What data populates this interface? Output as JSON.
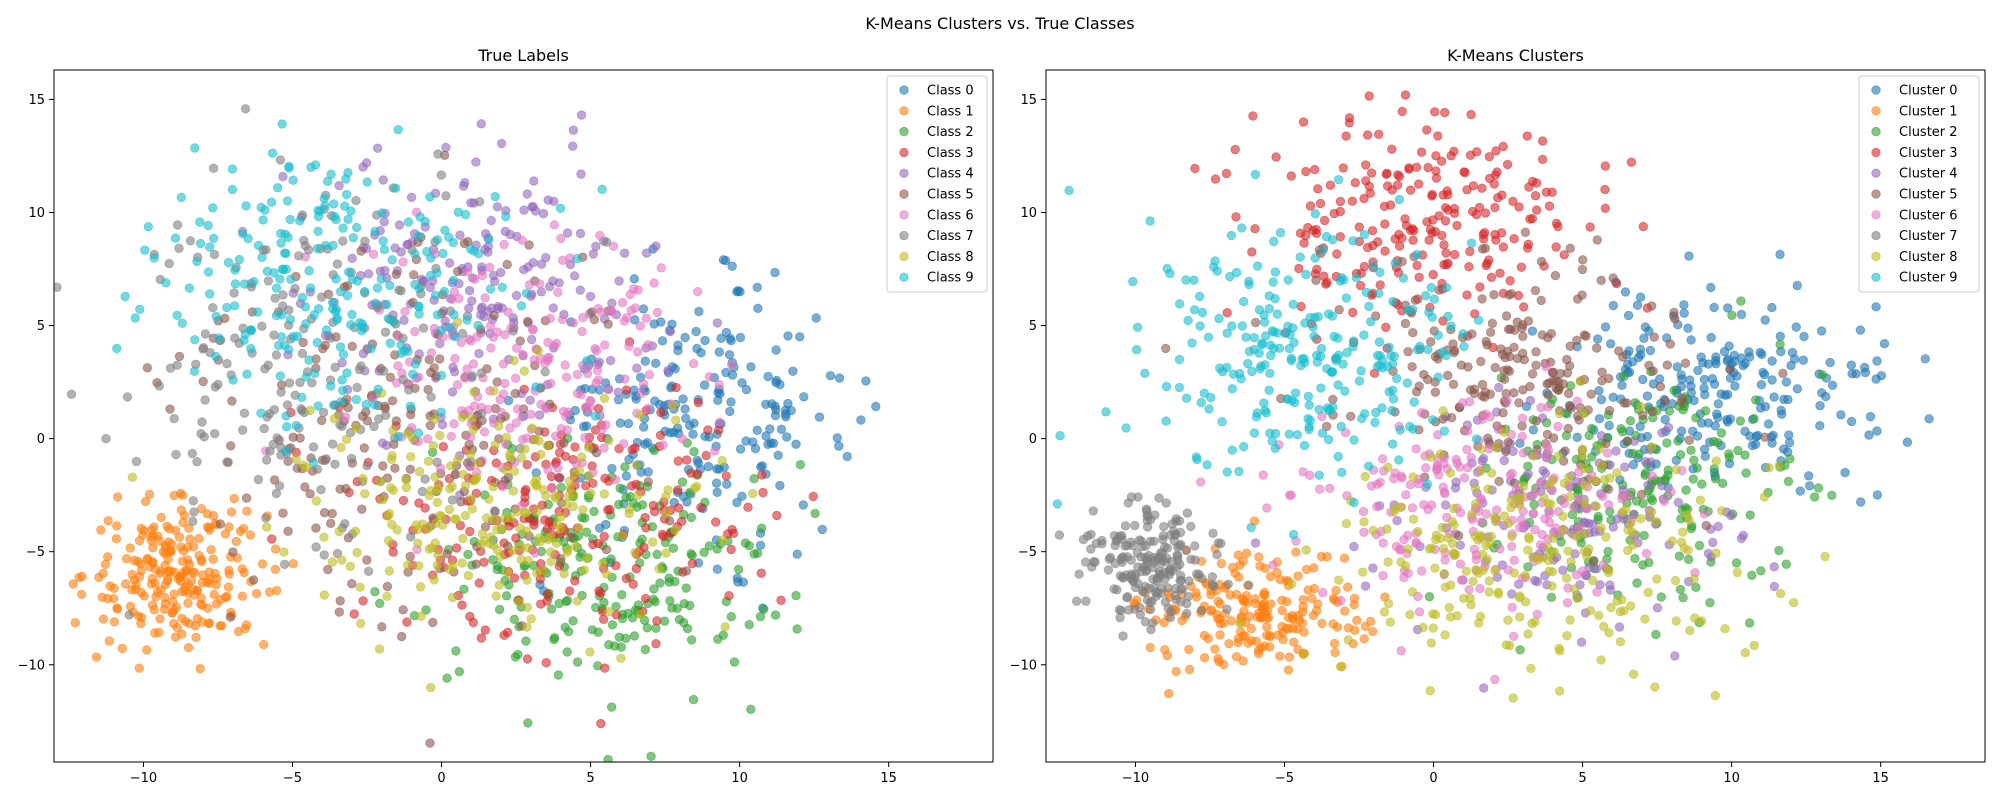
{
  "figure": {
    "title": "K-Means Clusters vs. True Classes"
  },
  "colors": [
    "#1f77b4",
    "#ff7f0e",
    "#2ca02c",
    "#d62728",
    "#9467bd",
    "#8c564b",
    "#e377c2",
    "#7f7f7f",
    "#bcbd22",
    "#17becf"
  ],
  "chart_data": [
    {
      "type": "scatter",
      "title": "True Labels",
      "xlabel": "",
      "ylabel": "",
      "xlim": [
        -13.0,
        18.5
      ],
      "ylim": [
        -14.3,
        16.3
      ],
      "xticks": [
        -10,
        -5,
        0,
        5,
        10,
        15
      ],
      "yticks": [
        -10,
        -5,
        0,
        5,
        10,
        15
      ],
      "grid": false,
      "legend_position": "top-right",
      "marker_alpha": 0.6,
      "series": [
        {
          "name": "Class 0",
          "center": [
            8.5,
            1.0
          ],
          "spread": [
            2.6,
            2.7
          ],
          "count": 220
        },
        {
          "name": "Class 1",
          "center": [
            -8.8,
            -6.0
          ],
          "spread": [
            1.5,
            1.6
          ],
          "count": 230
        },
        {
          "name": "Class 2",
          "center": [
            5.5,
            -5.8
          ],
          "spread": [
            3.0,
            2.8
          ],
          "count": 220
        },
        {
          "name": "Class 3",
          "center": [
            4.5,
            -3.2
          ],
          "spread": [
            3.2,
            2.8
          ],
          "count": 220
        },
        {
          "name": "Class 4",
          "center": [
            1.5,
            6.5
          ],
          "spread": [
            3.0,
            3.0
          ],
          "count": 200
        },
        {
          "name": "Class 5",
          "center": [
            -1.5,
            1.0
          ],
          "spread": [
            4.0,
            4.5
          ],
          "count": 200
        },
        {
          "name": "Class 6",
          "center": [
            3.5,
            3.0
          ],
          "spread": [
            3.0,
            3.0
          ],
          "count": 200
        },
        {
          "name": "Class 7",
          "center": [
            -4.5,
            3.0
          ],
          "spread": [
            3.2,
            4.0
          ],
          "count": 200
        },
        {
          "name": "Class 8",
          "center": [
            1.5,
            -3.0
          ],
          "spread": [
            3.2,
            2.5
          ],
          "count": 230
        },
        {
          "name": "Class 9",
          "center": [
            -3.8,
            6.8
          ],
          "spread": [
            3.0,
            3.0
          ],
          "count": 240
        }
      ]
    },
    {
      "type": "scatter",
      "title": "K-Means Clusters",
      "xlabel": "",
      "ylabel": "",
      "xlim": [
        -13.0,
        18.5
      ],
      "ylim": [
        -14.3,
        16.3
      ],
      "xticks": [
        -10,
        -5,
        0,
        5,
        10,
        15
      ],
      "yticks": [
        -10,
        -5,
        0,
        5,
        10,
        15
      ],
      "grid": false,
      "legend_position": "top-right",
      "marker_alpha": 0.6,
      "series": [
        {
          "name": "Cluster 0",
          "center": [
            9.8,
            2.0
          ],
          "spread": [
            2.8,
            2.3
          ],
          "count": 230
        },
        {
          "name": "Cluster 1",
          "center": [
            -6.0,
            -7.8
          ],
          "spread": [
            1.8,
            1.3
          ],
          "count": 200
        },
        {
          "name": "Cluster 2",
          "center": [
            7.0,
            -2.0
          ],
          "spread": [
            2.5,
            2.5
          ],
          "count": 200
        },
        {
          "name": "Cluster 3",
          "center": [
            -0.5,
            9.5
          ],
          "spread": [
            3.0,
            2.3
          ],
          "count": 240
        },
        {
          "name": "Cluster 4",
          "center": [
            4.0,
            -4.0
          ],
          "spread": [
            3.0,
            2.5
          ],
          "count": 150
        },
        {
          "name": "Cluster 5",
          "center": [
            3.0,
            3.0
          ],
          "spread": [
            3.0,
            2.5
          ],
          "count": 220
        },
        {
          "name": "Cluster 6",
          "center": [
            1.5,
            -3.0
          ],
          "spread": [
            3.0,
            2.5
          ],
          "count": 220
        },
        {
          "name": "Cluster 7",
          "center": [
            -9.5,
            -5.5
          ],
          "spread": [
            1.2,
            1.3
          ],
          "count": 200
        },
        {
          "name": "Cluster 8",
          "center": [
            3.5,
            -5.0
          ],
          "spread": [
            3.5,
            3.0
          ],
          "count": 240
        },
        {
          "name": "Cluster 9",
          "center": [
            -4.5,
            3.5
          ],
          "spread": [
            2.8,
            3.0
          ],
          "count": 260
        }
      ]
    }
  ]
}
